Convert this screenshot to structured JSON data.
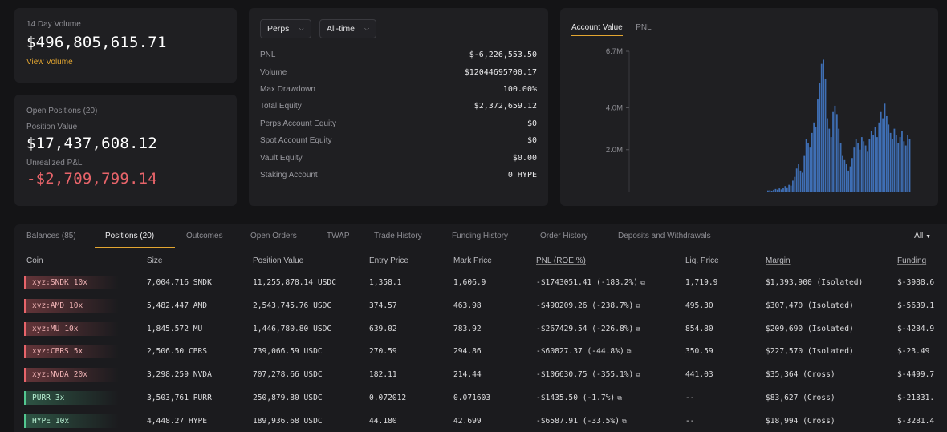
{
  "volume": {
    "label": "14 Day Volume",
    "value": "$496,805,615.71",
    "link": "View Volume"
  },
  "positions_summary": {
    "title": "Open Positions (20)",
    "position_value_label": "Position Value",
    "position_value": "$17,437,608.12",
    "upnl_label": "Unrealized P&L",
    "upnl": "-$2,709,799.14"
  },
  "stats": {
    "filters": [
      {
        "label": "Perps"
      },
      {
        "label": "All-time"
      }
    ],
    "rows": [
      {
        "key": "PNL",
        "value": "$-6,226,553.50",
        "tone": "neg"
      },
      {
        "key": "Volume",
        "value": "$12044695700.17",
        "tone": ""
      },
      {
        "key": "Max Drawdown",
        "value": "100.00%",
        "tone": ""
      },
      {
        "key": "Total Equity",
        "value": "$2,372,659.12",
        "tone": ""
      },
      {
        "key": "Perps Account Equity",
        "value": "$0",
        "tone": ""
      },
      {
        "key": "Spot Account Equity",
        "value": "$0",
        "tone": ""
      },
      {
        "key": "Vault Equity",
        "value": "$0.00",
        "tone": ""
      },
      {
        "key": "Staking Account",
        "value": "0 HYPE",
        "tone": ""
      }
    ]
  },
  "chart_tabs": [
    {
      "label": "Account Value"
    },
    {
      "label": "PNL"
    }
  ],
  "chart_data": {
    "type": "bar",
    "ylim": [
      0,
      6700000
    ],
    "yticks": [
      "6.7M",
      "4.0M",
      "2.0M"
    ],
    "ytick_values": [
      6700000,
      4000000,
      2000000
    ],
    "color": "#3f6fb5",
    "values": [
      50000,
      60000,
      40000,
      80000,
      120000,
      90000,
      150000,
      100000,
      180000,
      260000,
      200000,
      320000,
      280000,
      520000,
      700000,
      1100000,
      1300000,
      1000000,
      900000,
      1700000,
      2500000,
      2300000,
      2100000,
      2800000,
      3300000,
      3100000,
      4400000,
      5200000,
      6100000,
      6300000,
      5400000,
      3500000,
      3000000,
      2600000,
      3800000,
      4100000,
      3700000,
      3000000,
      2300000,
      1700000,
      1500000,
      1300000,
      1000000,
      1200000,
      1600000,
      2100000,
      2500000,
      2300000,
      2000000,
      2600000,
      2400000,
      2200000,
      1900000,
      2500000,
      2900000,
      2700000,
      3100000,
      2600000,
      3300000,
      3800000,
      3500000,
      4200000,
      3600000,
      3200000,
      2800000,
      2500000,
      3000000,
      2700000,
      2300000,
      2600000,
      2900000,
      2400000,
      2200000,
      2700000,
      2500000
    ]
  },
  "table": {
    "tabs": [
      {
        "label": "Balances (85)"
      },
      {
        "label": "Positions (20)"
      },
      {
        "label": "Outcomes"
      },
      {
        "label": "Open Orders"
      },
      {
        "label": "TWAP"
      },
      {
        "label": "Trade History"
      },
      {
        "label": "Funding History"
      },
      {
        "label": "Order History"
      },
      {
        "label": "Deposits and Withdrawals"
      }
    ],
    "filter_label": "All",
    "headers": {
      "coin": "Coin",
      "size": "Size",
      "position_value": "Position Value",
      "entry_price": "Entry Price",
      "mark_price": "Mark Price",
      "pnl": "PNL (ROE %)",
      "liq_price": "Liq. Price",
      "margin": "Margin",
      "funding": "Funding"
    },
    "rows": [
      {
        "coin": "xyz:SNDK",
        "lev": "10x",
        "side": "short",
        "size": "7,004.716 SNDK",
        "value": "11,255,878.14 USDC",
        "entry": "1,358.1",
        "mark": "1,606.9",
        "pnl": "-$1743051.41 (-183.2%)",
        "liq": "1,719.9",
        "margin": "$1,393,900 (Isolated)",
        "funding": "$-3988.6"
      },
      {
        "coin": "xyz:AMD",
        "lev": "10x",
        "side": "short",
        "size": "5,482.447 AMD",
        "value": "2,543,745.76 USDC",
        "entry": "374.57",
        "mark": "463.98",
        "pnl": "-$490209.26 (-238.7%)",
        "liq": "495.30",
        "margin": "$307,470 (Isolated)",
        "funding": "$-5639.1"
      },
      {
        "coin": "xyz:MU",
        "lev": "10x",
        "side": "short",
        "size": "1,845.572 MU",
        "value": "1,446,780.80 USDC",
        "entry": "639.02",
        "mark": "783.92",
        "pnl": "-$267429.54 (-226.8%)",
        "liq": "854.80",
        "margin": "$209,690 (Isolated)",
        "funding": "$-4284.9"
      },
      {
        "coin": "xyz:CBRS",
        "lev": "5x",
        "side": "short",
        "size": "2,506.50 CBRS",
        "value": "739,066.59 USDC",
        "entry": "270.59",
        "mark": "294.86",
        "pnl": "-$60827.37 (-44.8%)",
        "liq": "350.59",
        "margin": "$227,570 (Isolated)",
        "funding": "$-23.49"
      },
      {
        "coin": "xyz:NVDA",
        "lev": "20x",
        "side": "short",
        "size": "3,298.259 NVDA",
        "value": "707,278.66 USDC",
        "entry": "182.11",
        "mark": "214.44",
        "pnl": "-$106630.75 (-355.1%)",
        "liq": "441.03",
        "margin": "$35,364 (Cross)",
        "funding": "$-4499.7"
      },
      {
        "coin": "PURR",
        "lev": "3x",
        "side": "long",
        "size": "3,503,761 PURR",
        "value": "250,879.80 USDC",
        "entry": "0.072012",
        "mark": "0.071603",
        "pnl": "-$1435.50 (-1.7%)",
        "liq": "--",
        "margin": "$83,627 (Cross)",
        "funding": "$-21331."
      },
      {
        "coin": "HYPE",
        "lev": "10x",
        "side": "long",
        "size": "4,448.27 HYPE",
        "value": "189,936.68 USDC",
        "entry": "44.180",
        "mark": "42.699",
        "pnl": "-$6587.91 (-33.5%)",
        "liq": "--",
        "margin": "$18,994 (Cross)",
        "funding": "$-3281.4"
      }
    ]
  },
  "colors": {
    "accent": "#e3a631",
    "negative": "#e8646a",
    "positive": "#52c790",
    "bar": "#3f6fb5"
  }
}
